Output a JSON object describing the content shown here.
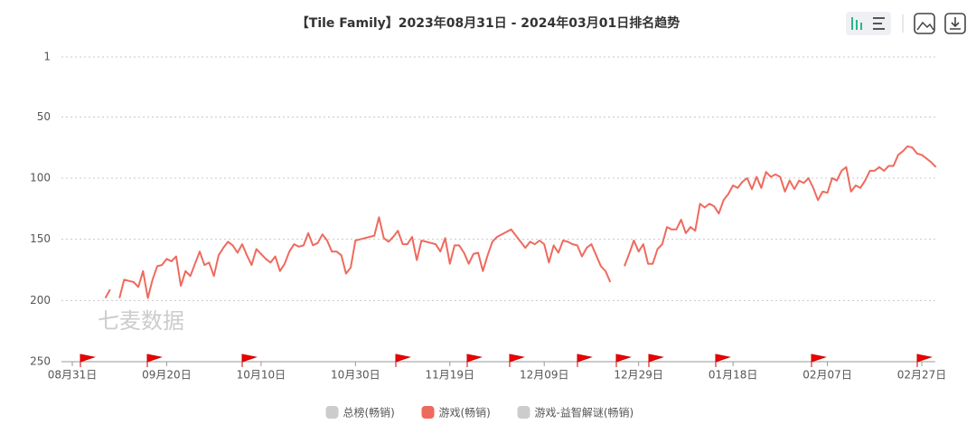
{
  "chart_data": {
    "type": "line",
    "title": "【Tile Family】2023年08月31日 - 2024年03月01日排名趋势",
    "watermark": "七麦数据",
    "categories": [
      "08月31日",
      null,
      null,
      null,
      null,
      null,
      null,
      null,
      null,
      null,
      null,
      null,
      null,
      null,
      null,
      null,
      null,
      null,
      null,
      null,
      "09月20日",
      null,
      null,
      null,
      null,
      null,
      null,
      null,
      null,
      null,
      null,
      null,
      null,
      null,
      null,
      null,
      null,
      null,
      null,
      null,
      "10月10日",
      null,
      null,
      null,
      null,
      null,
      null,
      null,
      null,
      null,
      null,
      null,
      null,
      null,
      null,
      null,
      null,
      null,
      null,
      null,
      "10月30日",
      null,
      null,
      null,
      null,
      null,
      null,
      null,
      null,
      null,
      null,
      null,
      null,
      null,
      null,
      null,
      null,
      null,
      null,
      null,
      "11月19日",
      null,
      null,
      null,
      null,
      null,
      null,
      null,
      null,
      null,
      null,
      null,
      null,
      null,
      null,
      null,
      null,
      null,
      null,
      null,
      "12月09日",
      null,
      null,
      null,
      null,
      null,
      null,
      null,
      null,
      null,
      null,
      null,
      null,
      null,
      null,
      null,
      null,
      null,
      null,
      null,
      "12月29日",
      null,
      null,
      null,
      null,
      null,
      null,
      null,
      null,
      null,
      null,
      null,
      null,
      null,
      null,
      null,
      null,
      null,
      null,
      null,
      "01月18日",
      null,
      null,
      null,
      null,
      null,
      null,
      null,
      null,
      null,
      null,
      null,
      null,
      null,
      null,
      null,
      null,
      null,
      null,
      null,
      "02月07日",
      null,
      null,
      null,
      null,
      null,
      null,
      null,
      null,
      null,
      null,
      null,
      null,
      null,
      null,
      null,
      null,
      null,
      null,
      null,
      "02月27日",
      null,
      null,
      null
    ],
    "series": [
      {
        "name": "总榜(畅销)",
        "color": "#cccccc",
        "hidden": true
      },
      {
        "name": "游戏(畅销)",
        "color": "#ee6a5e",
        "values": [
          null,
          null,
          null,
          null,
          null,
          null,
          null,
          198,
          191,
          null,
          198,
          183,
          184,
          185,
          189,
          176,
          198,
          183,
          172,
          171,
          166,
          168,
          164,
          188,
          176,
          180,
          170,
          160,
          171,
          169,
          180,
          163,
          157,
          152,
          155,
          161,
          154,
          163,
          171,
          158,
          162,
          166,
          169,
          164,
          176,
          170,
          160,
          154,
          156,
          155,
          145,
          155,
          153,
          146,
          151,
          160,
          160,
          163,
          178,
          173,
          151,
          150,
          149,
          148,
          147,
          132,
          149,
          152,
          148,
          143,
          154,
          154,
          148,
          167,
          151,
          152,
          153,
          154,
          160,
          149,
          170,
          155,
          155,
          161,
          170,
          162,
          161,
          176,
          163,
          152,
          148,
          146,
          144,
          142,
          147,
          152,
          157,
          152,
          154,
          151,
          154,
          169,
          155,
          161,
          151,
          152,
          154,
          155,
          164,
          157,
          154,
          163,
          172,
          176,
          185,
          null,
          null,
          172,
          162,
          151,
          160,
          154,
          170,
          170,
          158,
          154,
          140,
          142,
          142,
          134,
          145,
          140,
          143,
          121,
          124,
          121,
          123,
          129,
          118,
          113,
          106,
          108,
          103,
          100,
          109,
          99,
          108,
          95,
          99,
          97,
          99,
          111,
          102,
          109,
          102,
          104,
          100,
          108,
          118,
          111,
          112,
          100,
          102,
          94,
          91,
          111,
          106,
          108,
          102,
          94,
          94,
          91,
          94,
          90,
          90,
          81,
          78,
          74,
          75,
          80,
          81,
          84,
          87,
          91
        ]
      },
      {
        "name": "游戏-益智解谜(畅销)",
        "color": "#cccccc",
        "hidden": true
      }
    ],
    "ylim": [
      1,
      250
    ],
    "inverted": true,
    "yticks": [
      1,
      50,
      100,
      150,
      200,
      250
    ],
    "grid": true
  }
}
